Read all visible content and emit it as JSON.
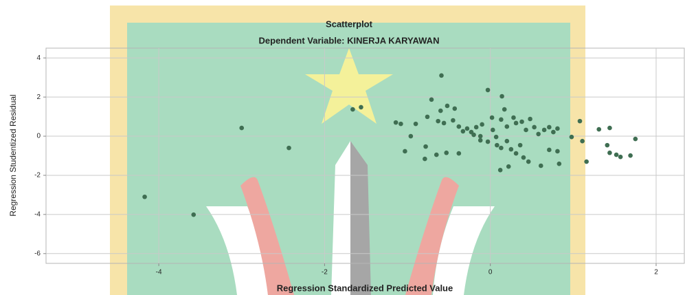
{
  "chart_data": {
    "type": "scatter",
    "title": "Scatterplot",
    "subtitle": "Dependent Variable: KINERJA KARYAWAN",
    "x_label": "Regression Standardized Predicted Value",
    "y_label": "Regression Studentized Residual",
    "color": "#3f6e52",
    "grid": true,
    "xlim": [
      -5.36,
      2.34
    ],
    "ylim": [
      -6.5,
      4.5
    ],
    "xticks": [
      -4,
      -2,
      0,
      2
    ],
    "yticks": [
      -6,
      -4,
      -2,
      0,
      2,
      4
    ],
    "x": [
      -4.17,
      -3.58,
      -3.0,
      -2.43,
      -1.66,
      -1.56,
      -0.59,
      -0.03,
      0.14,
      -0.71,
      -0.52,
      -0.43,
      -0.6,
      0.17,
      -1.14,
      -1.08,
      -0.9,
      -0.76,
      -0.63,
      -0.56,
      -0.45,
      -0.38,
      -0.33,
      -0.28,
      -0.23,
      -0.2,
      -0.17,
      -0.12,
      -0.1,
      0.02,
      0.03,
      0.07,
      0.13,
      0.2,
      0.28,
      0.31,
      0.38,
      0.43,
      0.48,
      0.53,
      0.58,
      0.65,
      0.71,
      0.76,
      0.81,
      -0.96,
      -1.03,
      -0.78,
      -0.79,
      -0.65,
      -0.53,
      -0.38,
      -0.12,
      -0.03,
      0.08,
      0.13,
      0.2,
      0.25,
      0.31,
      0.36,
      0.4,
      0.46,
      0.12,
      0.22,
      0.61,
      0.71,
      0.81,
      0.83,
      0.98,
      1.08,
      1.11,
      1.16,
      1.31,
      1.44,
      1.41,
      1.44,
      1.52,
      1.57,
      1.69,
      1.75
    ],
    "values": [
      -3.1,
      -4.01,
      0.42,
      -0.6,
      1.37,
      1.48,
      3.1,
      2.36,
      2.04,
      1.87,
      1.55,
      1.41,
      1.3,
      1.37,
      0.7,
      0.63,
      0.63,
      0.99,
      0.77,
      0.67,
      0.81,
      0.49,
      0.25,
      0.39,
      0.21,
      0.07,
      0.46,
      0.0,
      0.6,
      0.95,
      0.32,
      -0.04,
      0.85,
      0.49,
      0.95,
      0.67,
      0.74,
      0.32,
      0.88,
      0.46,
      0.11,
      0.32,
      0.46,
      0.21,
      0.39,
      0.0,
      -0.77,
      -0.53,
      -1.16,
      -0.95,
      -0.85,
      -0.88,
      -0.21,
      -0.28,
      -0.46,
      -0.6,
      -0.25,
      -0.67,
      -0.88,
      -0.46,
      -1.09,
      -1.3,
      -1.73,
      -1.55,
      -1.51,
      -0.7,
      -0.77,
      -1.41,
      -0.04,
      0.77,
      -0.25,
      -1.3,
      0.35,
      0.42,
      -0.46,
      -0.85,
      -0.95,
      -1.06,
      -0.99,
      -0.14
    ]
  }
}
